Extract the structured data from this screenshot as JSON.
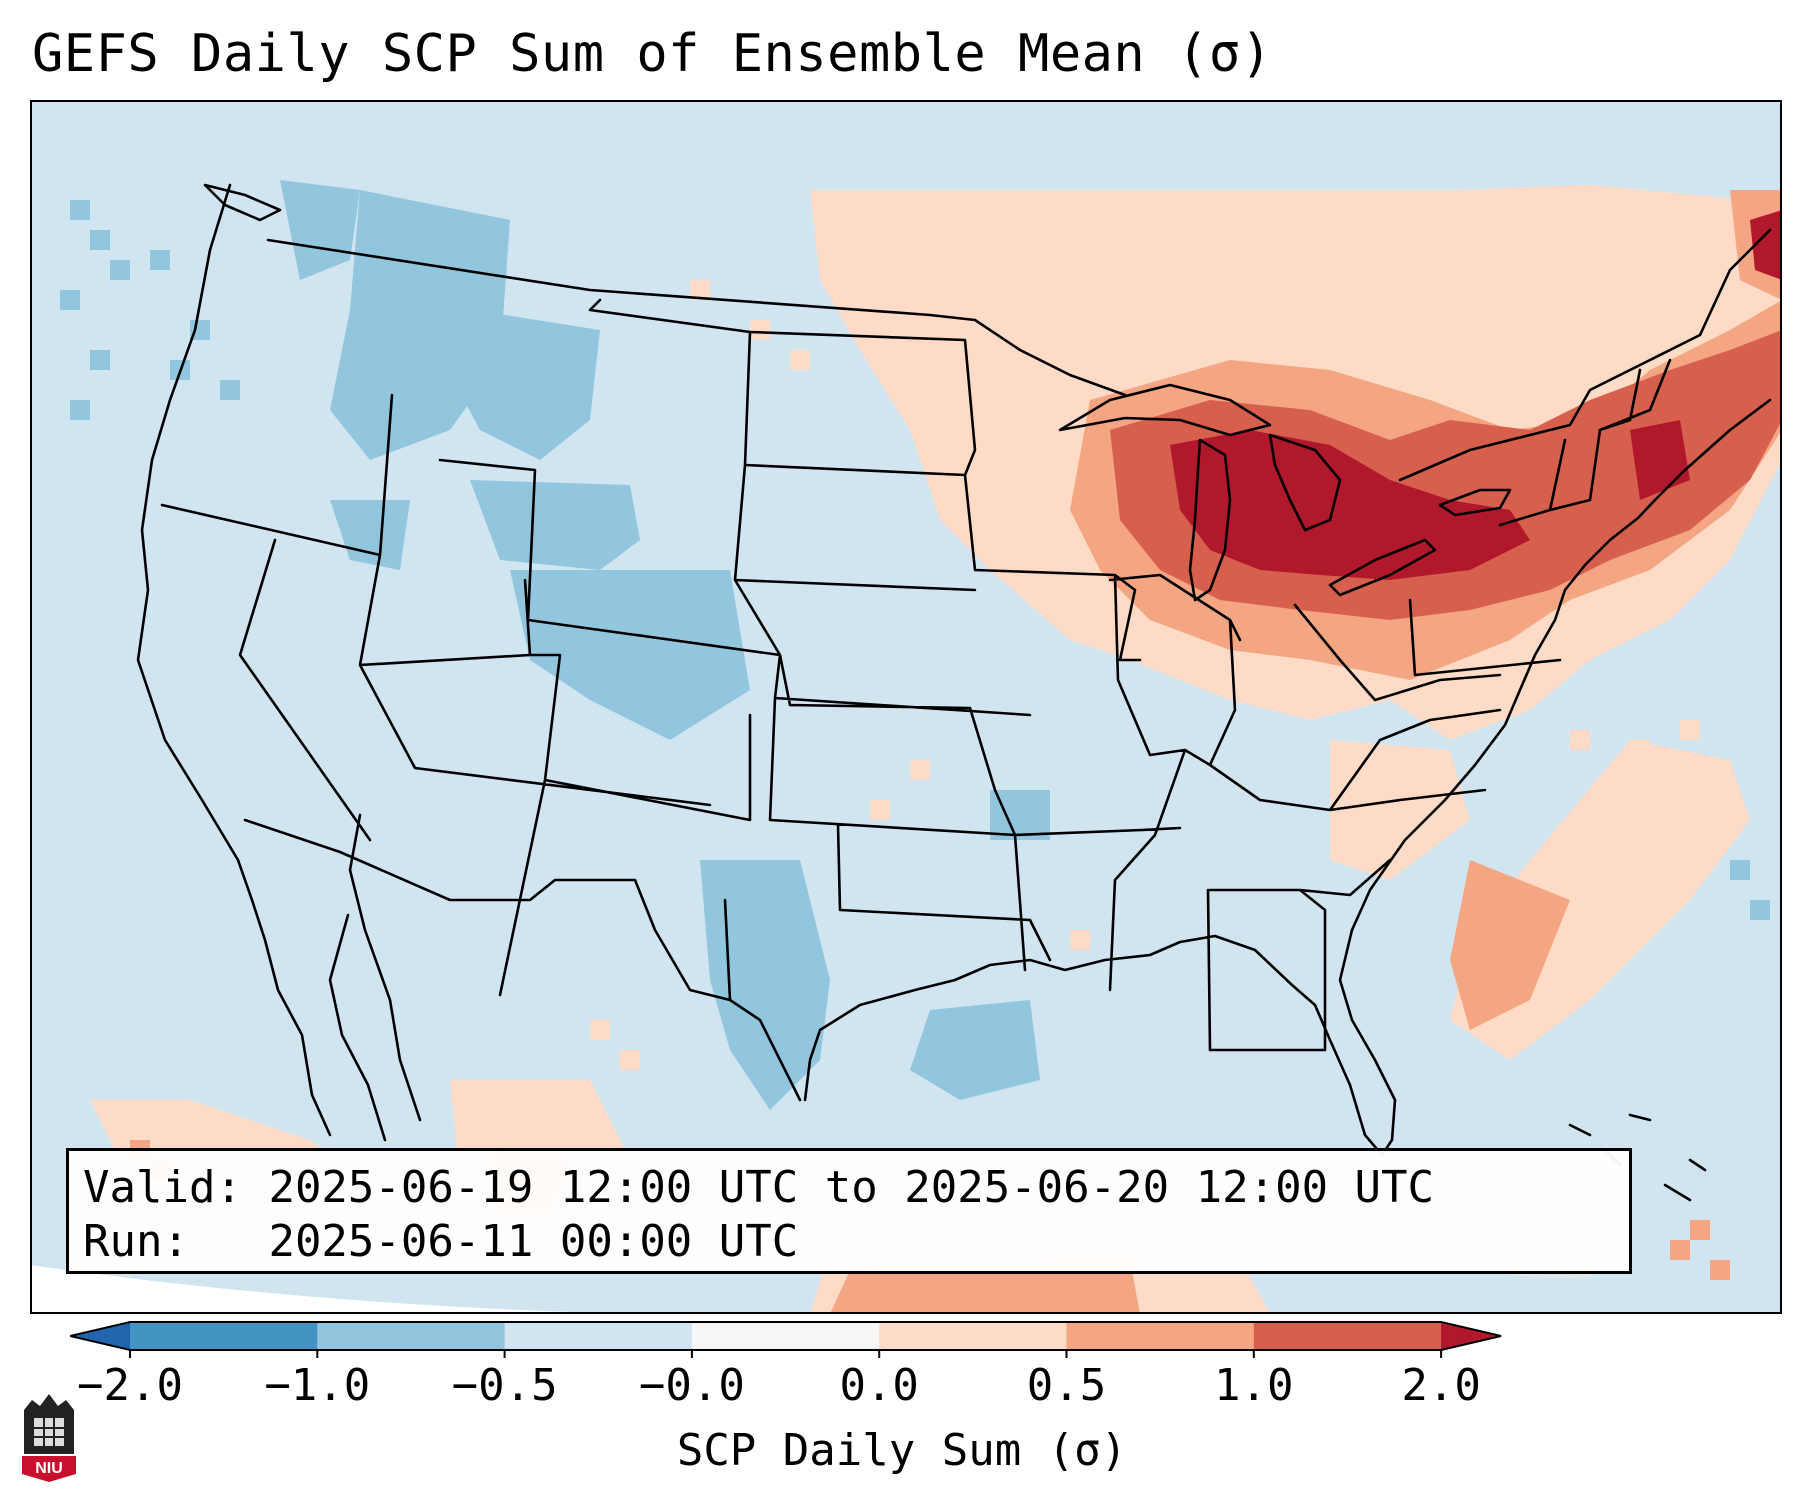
{
  "title": "GEFS Daily SCP Sum of Ensemble Mean (σ)",
  "info": {
    "valid_label": "Valid:",
    "valid_value": "2025-06-19 12:00 UTC to 2025-06-20 12:00 UTC",
    "run_label": "Run:",
    "run_value": "2025-06-11 00:00 UTC"
  },
  "colorbar": {
    "label": "SCP Daily Sum (σ)",
    "ticks": [
      "−2.0",
      "−1.0",
      "−0.5",
      "−0.0",
      "0.0",
      "0.5",
      "1.0",
      "2.0"
    ],
    "colors": [
      "#2166ac",
      "#4393c3",
      "#92c5de",
      "#d1e5f0",
      "#f7f7f7",
      "#fddbc7",
      "#f4a582",
      "#d6604d",
      "#b2182b"
    ]
  },
  "map": {
    "background_color": "#d1e5f0",
    "region": "Contiguous United States, southern Canada, northern Mexico, Gulf of Mexico",
    "highlight": "Highest values over the Great Lakes region"
  },
  "logo": {
    "text": "NIU"
  }
}
